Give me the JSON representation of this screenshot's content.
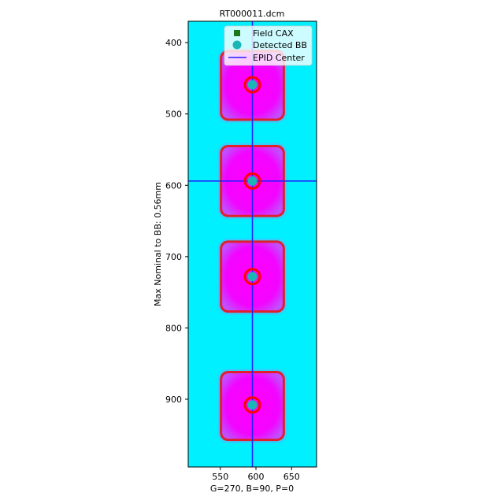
{
  "chart_data": {
    "type": "image",
    "title": "RT000011.dcm",
    "xlabel": "G=270, B=90, P=0",
    "ylabel": "Max Nominal to BB: 0.56mm",
    "xlim": [
      505,
      685
    ],
    "ylim": [
      995,
      370
    ],
    "y_inverted": true,
    "xticks": [
      550,
      600,
      650
    ],
    "yticks": [
      400,
      500,
      600,
      700,
      800,
      900
    ],
    "colors": {
      "background": "#00f0ff",
      "field": "#ff00ff",
      "field_contour": "#e0202a",
      "bb_contour": "#ff0000",
      "bb": "#1ab5b5",
      "field_cax": "#1a7a1a",
      "epid_line": "#2020ff"
    },
    "epid_center": {
      "x": 595,
      "y": 594
    },
    "fields": [
      {
        "cx": 595,
        "cy": 459,
        "x0": 551,
        "x1": 639,
        "y0": 412,
        "y1": 508
      },
      {
        "cx": 595,
        "cy": 594,
        "x0": 551,
        "x1": 639,
        "y0": 545,
        "y1": 643
      },
      {
        "cx": 595,
        "cy": 728,
        "x0": 551,
        "x1": 639,
        "y0": 679,
        "y1": 777
      },
      {
        "cx": 595,
        "cy": 908,
        "x0": 551,
        "x1": 639,
        "y0": 862,
        "y1": 957
      }
    ],
    "detected_bbs": [
      {
        "x": 595,
        "y": 459
      },
      {
        "x": 595,
        "y": 594
      },
      {
        "x": 595,
        "y": 728
      },
      {
        "x": 595,
        "y": 908
      }
    ],
    "legend": {
      "position": "top-right",
      "entries": [
        {
          "label": "Field CAX",
          "marker": "square"
        },
        {
          "label": "Detected BB",
          "marker": "circle"
        },
        {
          "label": "EPID Center",
          "marker": "line"
        }
      ]
    }
  }
}
